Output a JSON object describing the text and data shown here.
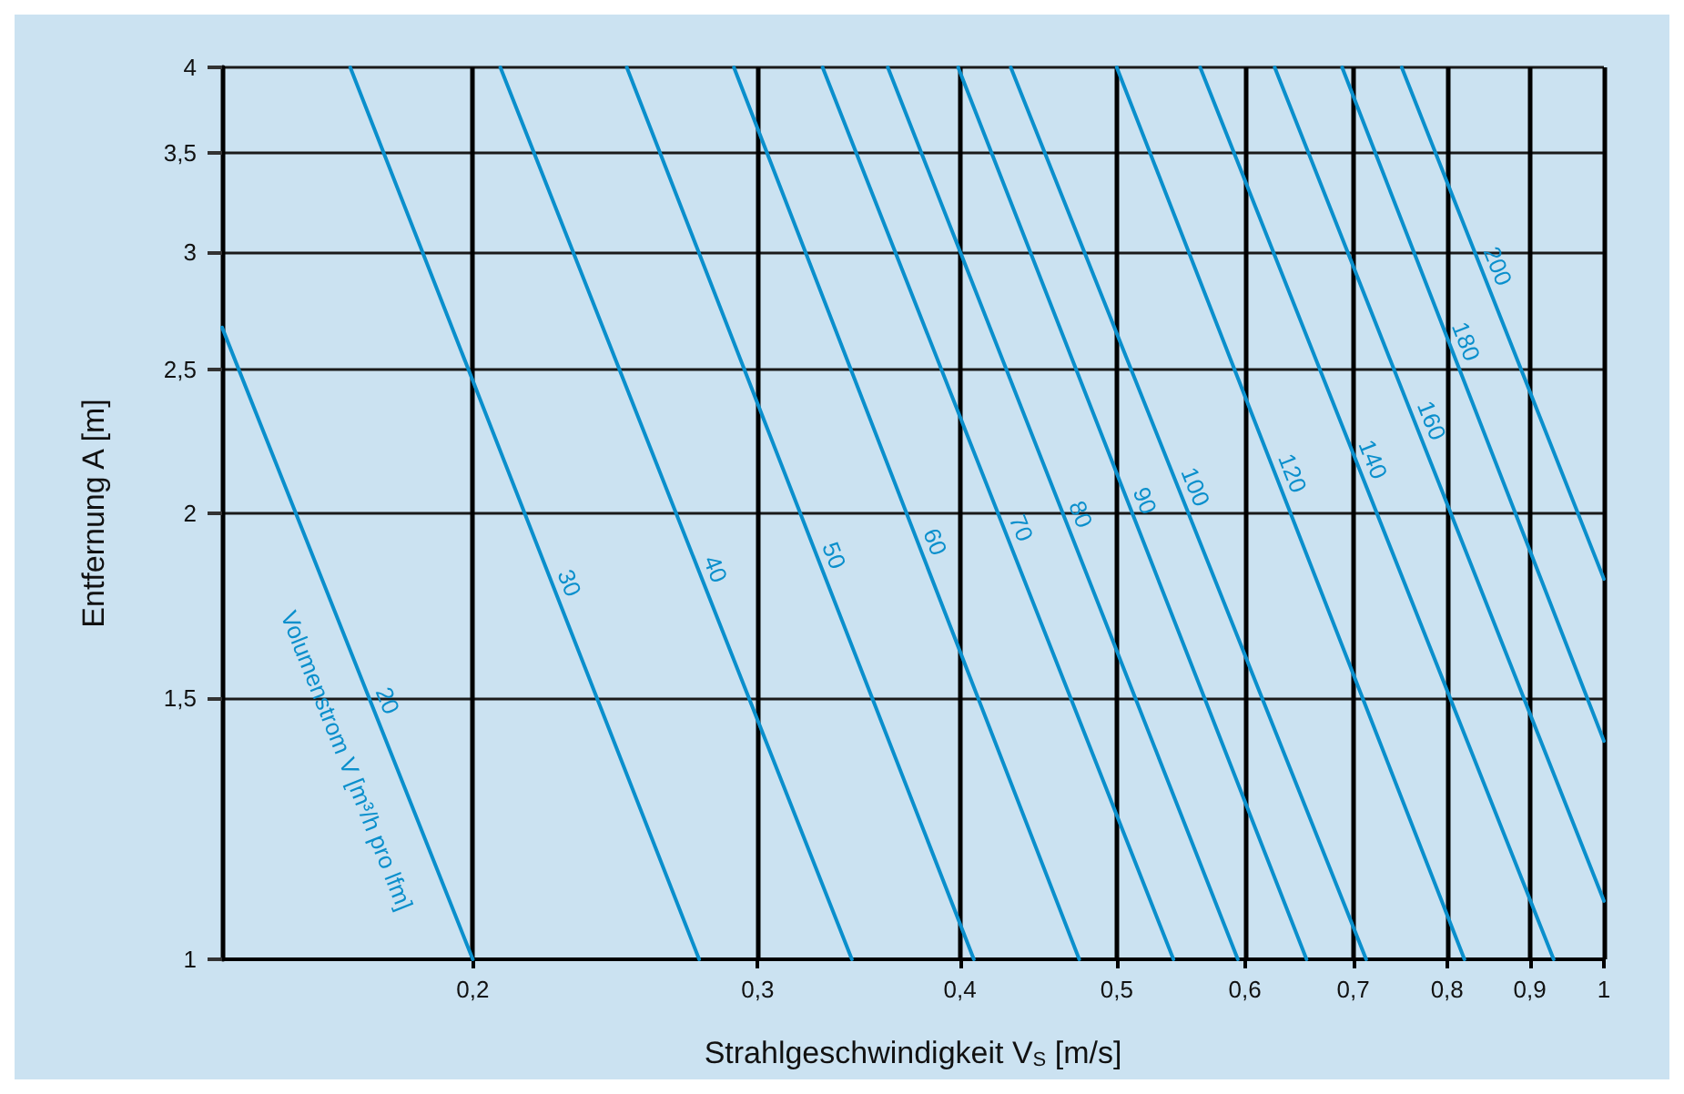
{
  "chart_data": {
    "type": "line",
    "xlabel": "Strahlgeschwindigkeit V$_{S}$ [m/s]",
    "ylabel": "Entfernung A [m]",
    "annotations": [
      "Volumenstrom V [m³/h pro lfm]"
    ],
    "log": "xy",
    "grid": true,
    "legend": false,
    "marker": "none",
    "line_style": "solid",
    "xlim": [
      0.14,
      1
    ],
    "xticks": [
      {
        "value": 0.2,
        "label": "0,2"
      },
      {
        "value": 0.3,
        "label": "0,3"
      },
      {
        "value": 0.4,
        "label": "0,4"
      },
      {
        "value": 0.5,
        "label": "0,5"
      },
      {
        "value": 0.6,
        "label": "0,6"
      },
      {
        "value": 0.7,
        "label": "0,7"
      },
      {
        "value": 0.8,
        "label": "0,8"
      },
      {
        "value": 0.9,
        "label": "0,9"
      },
      1
    ],
    "ylim": [
      1,
      4
    ],
    "yticks": [
      1,
      {
        "value": 1.5,
        "label": "1,5"
      },
      2,
      {
        "value": 2.5,
        "label": "2,5"
      },
      3,
      {
        "value": 3.5,
        "label": "3,5"
      },
      4
    ],
    "series": [
      {
        "name": "20",
        "color": "#0a8fcc",
        "x": [
          0.14,
          0.2
        ],
        "values": [
          2.67,
          1
        ]
      },
      {
        "name": "30",
        "color": "#0a8fcc",
        "x": [
          0.168,
          0.276
        ],
        "values": [
          4,
          1
        ]
      },
      {
        "name": "40",
        "color": "#0a8fcc",
        "x": [
          0.208,
          0.343
        ],
        "values": [
          4,
          1
        ]
      },
      {
        "name": "50",
        "color": "#0a8fcc",
        "x": [
          0.249,
          0.408
        ],
        "values": [
          4,
          1
        ]
      },
      {
        "name": "60",
        "color": "#0a8fcc",
        "x": [
          0.29,
          0.474
        ],
        "values": [
          4,
          1
        ]
      },
      {
        "name": "70",
        "color": "#0a8fcc",
        "x": [
          0.329,
          0.542
        ],
        "values": [
          4,
          1
        ]
      },
      {
        "name": "80",
        "color": "#0a8fcc",
        "x": [
          0.361,
          0.594
        ],
        "values": [
          4,
          1
        ]
      },
      {
        "name": "90",
        "color": "#0a8fcc",
        "x": [
          0.399,
          0.655
        ],
        "values": [
          4,
          1
        ]
      },
      {
        "name": "100",
        "color": "#0a8fcc",
        "x": [
          0.43,
          0.713
        ],
        "values": [
          4,
          1
        ]
      },
      {
        "name": "120",
        "color": "#0a8fcc",
        "x": [
          0.5,
          0.82
        ],
        "values": [
          4,
          1
        ]
      },
      {
        "name": "140",
        "color": "#0a8fcc",
        "x": [
          0.563,
          0.931
        ],
        "values": [
          4,
          1
        ]
      },
      {
        "name": "160",
        "color": "#0a8fcc",
        "x": [
          0.626,
          1
        ],
        "values": [
          4,
          1.095
        ]
      },
      {
        "name": "180",
        "color": "#0a8fcc",
        "x": [
          0.689,
          1
        ],
        "values": [
          4,
          1.404
        ]
      },
      {
        "name": "200",
        "color": "#0a8fcc",
        "x": [
          0.75,
          1
        ],
        "values": [
          4,
          1.806
        ]
      }
    ]
  }
}
